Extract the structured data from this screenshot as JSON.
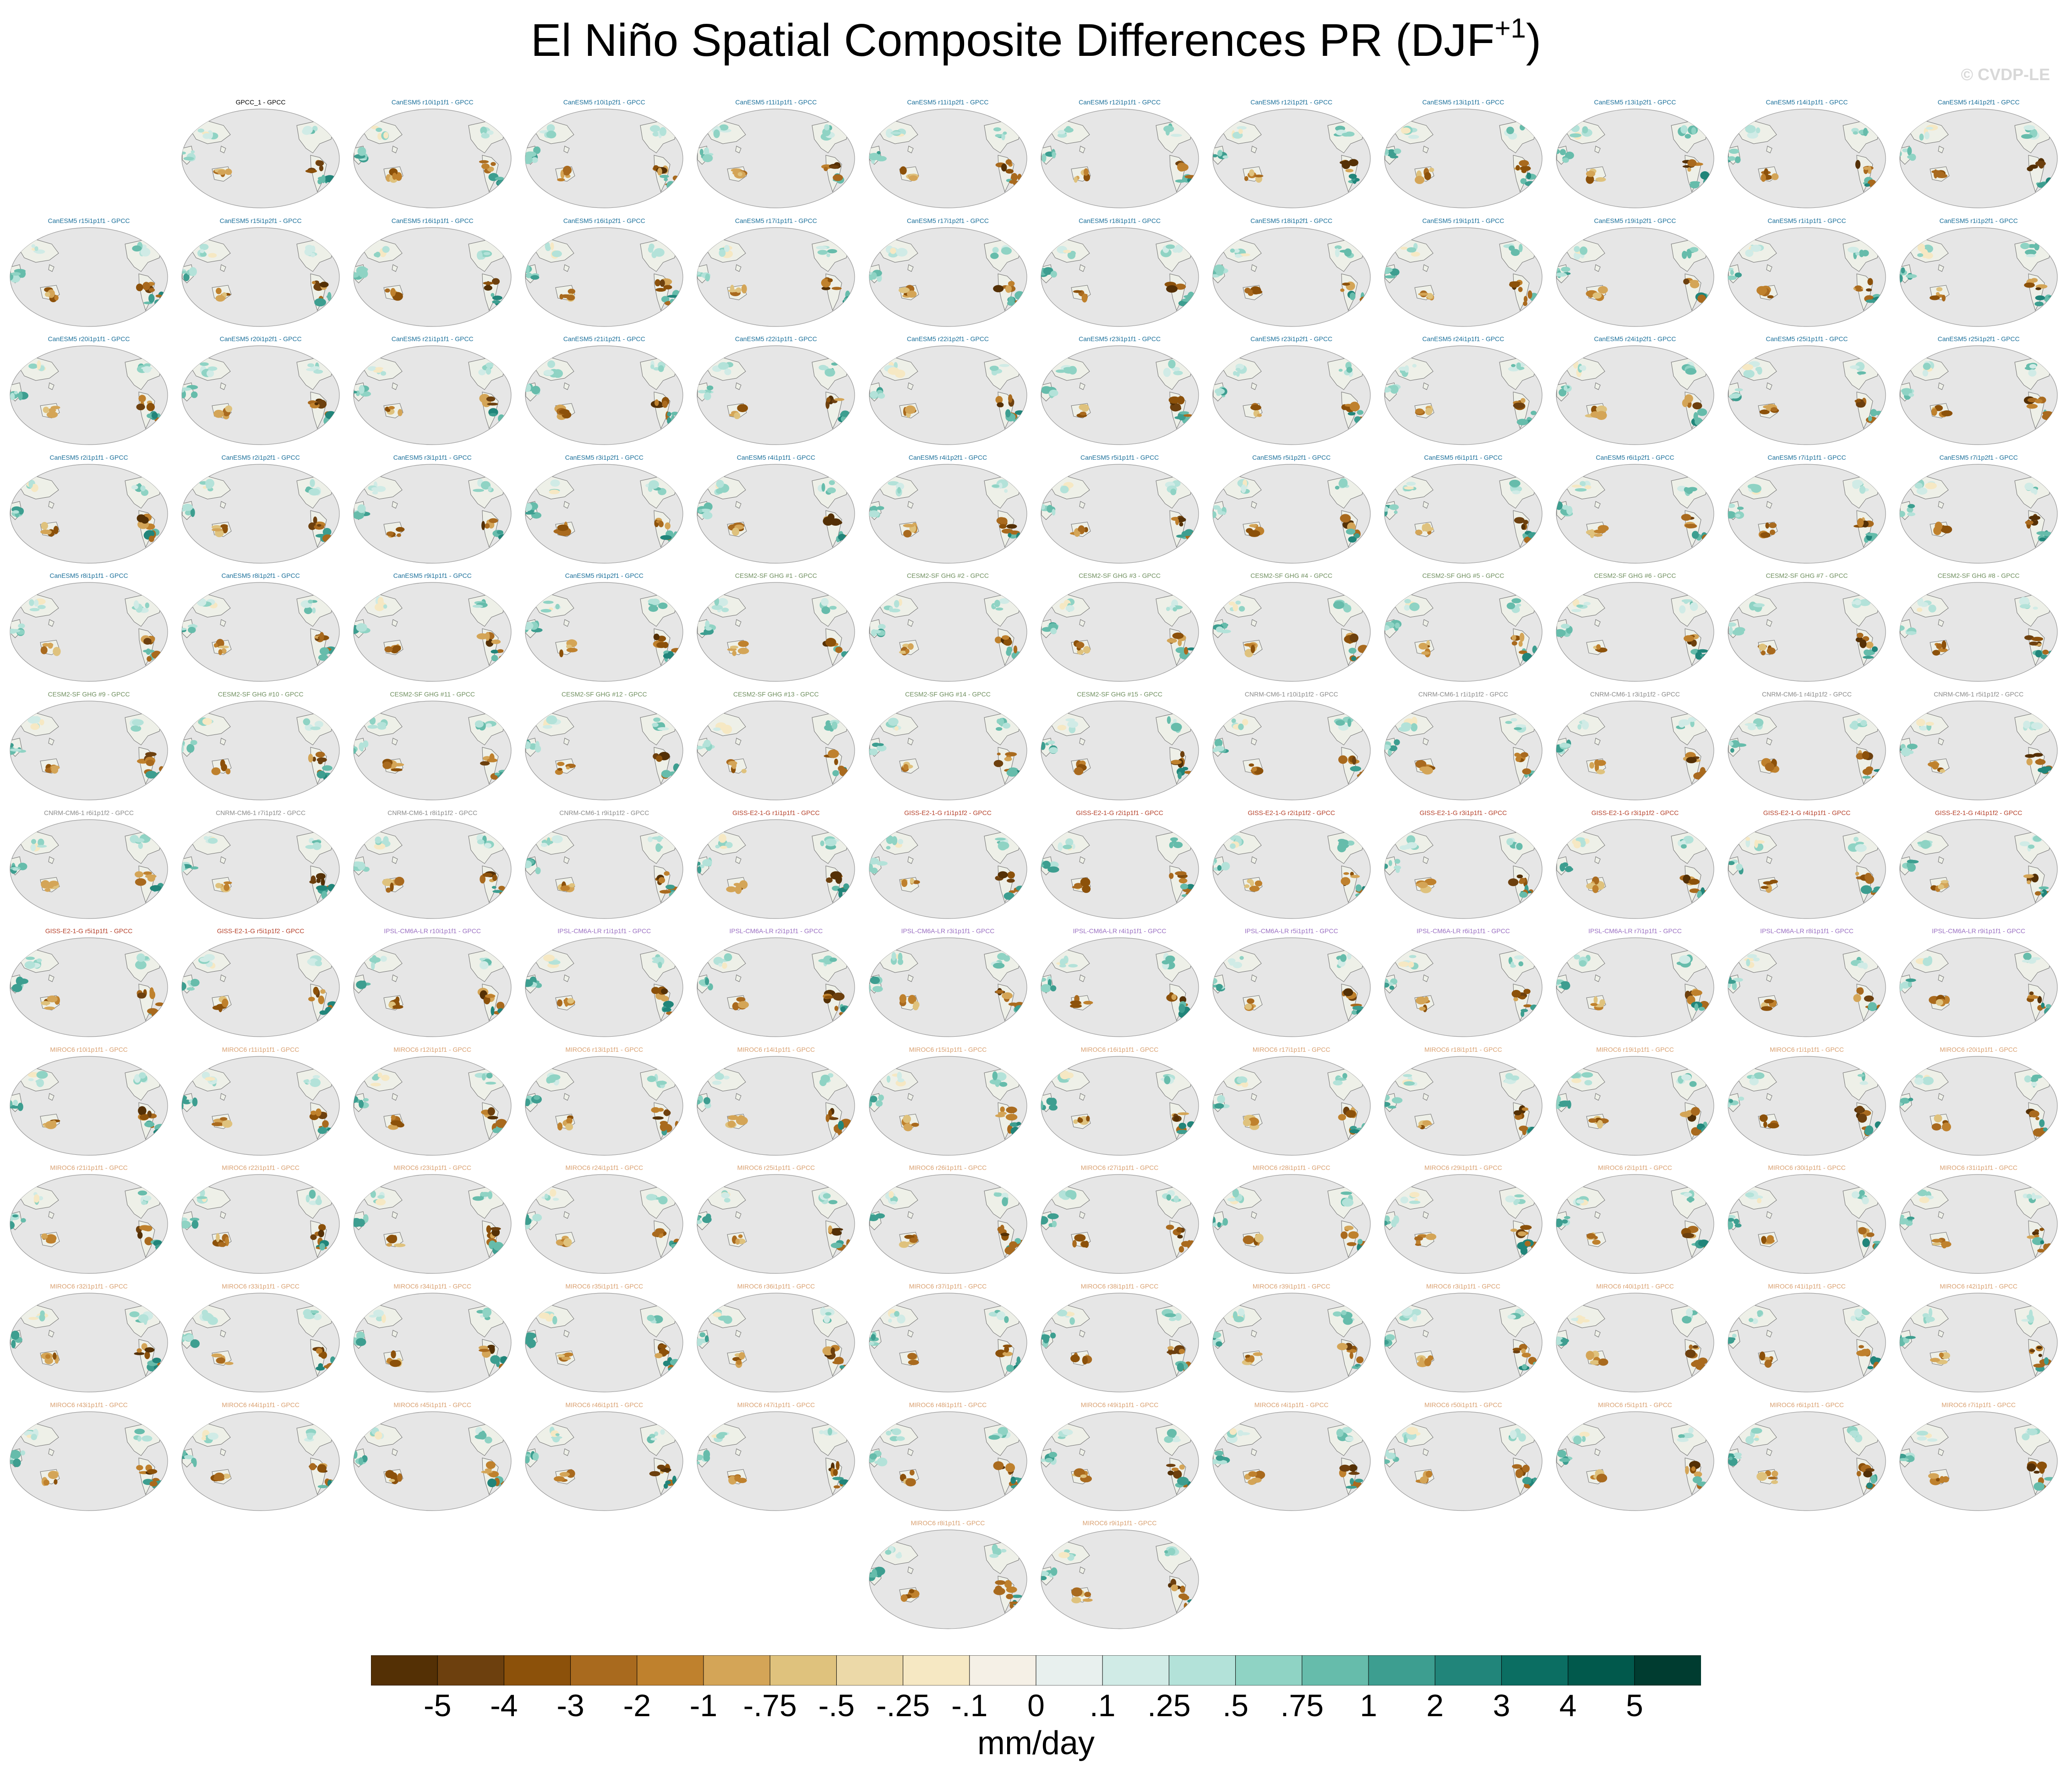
{
  "chart_data": {
    "type": "map-panels",
    "title_main": "El Niño Spatial Composite Differences PR (DJF",
    "title_sup": "+1",
    "title_close": ")",
    "credit": "© CVDP-LE",
    "units": "mm/day",
    "colorbar": {
      "colors": [
        "#543005",
        "#6d400e",
        "#8c510a",
        "#a96a1e",
        "#bf812d",
        "#d4a557",
        "#dfc27d",
        "#ecd9a8",
        "#f6e8c3",
        "#f5f0e6",
        "#e8f0ee",
        "#d0ebe6",
        "#b3e2d9",
        "#8fd3c4",
        "#66bcab",
        "#3d9e90",
        "#21857a",
        "#0b6e62",
        "#01594c",
        "#003c30"
      ],
      "labels": [
        "-5",
        "-4",
        "-3",
        "-2",
        "-1",
        "-.75",
        "-.5",
        "-.25",
        "-.1",
        "0",
        ".1",
        ".25",
        ".5",
        ".75",
        "1",
        "2",
        "3",
        "4",
        "5"
      ]
    },
    "groups": [
      {
        "model": "GPCC",
        "color": "#000000",
        "titles": [
          "GPCC_1 - GPCC"
        ]
      },
      {
        "model": "CanESM5",
        "color": "#1a6f9a",
        "titles": [
          "CanESM5 r10i1p1f1 - GPCC",
          "CanESM5 r10i1p2f1 - GPCC",
          "CanESM5 r11i1p1f1 - GPCC",
          "CanESM5 r11i1p2f1 - GPCC",
          "CanESM5 r12i1p1f1 - GPCC",
          "CanESM5 r12i1p2f1 - GPCC",
          "CanESM5 r13i1p1f1 - GPCC",
          "CanESM5 r13i1p2f1 - GPCC",
          "CanESM5 r14i1p1f1 - GPCC",
          "CanESM5 r14i1p2f1 - GPCC",
          "CanESM5 r15i1p1f1 - GPCC",
          "CanESM5 r15i1p2f1 - GPCC",
          "CanESM5 r16i1p1f1 - GPCC",
          "CanESM5 r16i1p2f1 - GPCC",
          "CanESM5 r17i1p1f1 - GPCC",
          "CanESM5 r17i1p2f1 - GPCC",
          "CanESM5 r18i1p1f1 - GPCC",
          "CanESM5 r18i1p2f1 - GPCC",
          "CanESM5 r19i1p1f1 - GPCC",
          "CanESM5 r19i1p2f1 - GPCC",
          "CanESM5 r1i1p1f1 - GPCC",
          "CanESM5 r1i1p2f1 - GPCC",
          "CanESM5 r20i1p1f1 - GPCC",
          "CanESM5 r20i1p2f1 - GPCC",
          "CanESM5 r21i1p1f1 - GPCC",
          "CanESM5 r21i1p2f1 - GPCC",
          "CanESM5 r22i1p1f1 - GPCC",
          "CanESM5 r22i1p2f1 - GPCC",
          "CanESM5 r23i1p1f1 - GPCC",
          "CanESM5 r23i1p2f1 - GPCC",
          "CanESM5 r24i1p1f1 - GPCC",
          "CanESM5 r24i1p2f1 - GPCC",
          "CanESM5 r25i1p1f1 - GPCC",
          "CanESM5 r25i1p2f1 - GPCC",
          "CanESM5 r2i1p1f1 - GPCC",
          "CanESM5 r2i1p2f1 - GPCC",
          "CanESM5 r3i1p1f1 - GPCC",
          "CanESM5 r3i1p2f1 - GPCC",
          "CanESM5 r4i1p1f1 - GPCC",
          "CanESM5 r4i1p2f1 - GPCC",
          "CanESM5 r5i1p1f1 - GPCC",
          "CanESM5 r5i1p2f1 - GPCC",
          "CanESM5 r6i1p1f1 - GPCC",
          "CanESM5 r6i1p2f1 - GPCC",
          "CanESM5 r7i1p1f1 - GPCC",
          "CanESM5 r7i1p2f1 - GPCC",
          "CanESM5 r8i1p1f1 - GPCC",
          "CanESM5 r8i1p2f1 - GPCC",
          "CanESM5 r9i1p1f1 - GPCC",
          "CanESM5 r9i1p2f1 - GPCC"
        ]
      },
      {
        "model": "CESM2-SF GHG",
        "color": "#6f8f5f",
        "titles": [
          "CESM2-SF GHG #1 - GPCC",
          "CESM2-SF GHG #2 - GPCC",
          "CESM2-SF GHG #3 - GPCC",
          "CESM2-SF GHG #4 - GPCC",
          "CESM2-SF GHG #5 - GPCC",
          "CESM2-SF GHG #6 - GPCC",
          "CESM2-SF GHG #7 - GPCC",
          "CESM2-SF GHG #8 - GPCC",
          "CESM2-SF GHG #9 - GPCC",
          "CESM2-SF GHG #10 - GPCC",
          "CESM2-SF GHG #11 - GPCC",
          "CESM2-SF GHG #12 - GPCC",
          "CESM2-SF GHG #13 - GPCC",
          "CESM2-SF GHG #14 - GPCC",
          "CESM2-SF GHG #15 - GPCC"
        ]
      },
      {
        "model": "CNRM-CM6-1",
        "color": "#8a8a8a",
        "titles": [
          "CNRM-CM6-1 r10i1p1f2 - GPCC",
          "CNRM-CM6-1 r1i1p1f2 - GPCC",
          "CNRM-CM6-1 r3i1p1f2 - GPCC",
          "CNRM-CM6-1 r4i1p1f2 - GPCC",
          "CNRM-CM6-1 r5i1p1f2 - GPCC",
          "CNRM-CM6-1 r6i1p1f2 - GPCC",
          "CNRM-CM6-1 r7i1p1f2 - GPCC",
          "CNRM-CM6-1 r8i1p1f2 - GPCC",
          "CNRM-CM6-1 r9i1p1f2 - GPCC"
        ]
      },
      {
        "model": "GISS-E2-1-G",
        "color": "#b5402a",
        "titles": [
          "GISS-E2-1-G r1i1p1f1 - GPCC",
          "GISS-E2-1-G r1i1p1f2 - GPCC",
          "GISS-E2-1-G r2i1p1f1 - GPCC",
          "GISS-E2-1-G r2i1p1f2 - GPCC",
          "GISS-E2-1-G r3i1p1f1 - GPCC",
          "GISS-E2-1-G r3i1p1f2 - GPCC",
          "GISS-E2-1-G r4i1p1f1 - GPCC",
          "GISS-E2-1-G r4i1p1f2 - GPCC",
          "GISS-E2-1-G r5i1p1f1 - GPCC",
          "GISS-E2-1-G r5i1p1f2 - GPCC"
        ]
      },
      {
        "model": "IPSL-CM6A-LR",
        "color": "#9a6fc2",
        "titles": [
          "IPSL-CM6A-LR r10i1p1f1 - GPCC",
          "IPSL-CM6A-LR r1i1p1f1 - GPCC",
          "IPSL-CM6A-LR r2i1p1f1 - GPCC",
          "IPSL-CM6A-LR r3i1p1f1 - GPCC",
          "IPSL-CM6A-LR r4i1p1f1 - GPCC",
          "IPSL-CM6A-LR r5i1p1f1 - GPCC",
          "IPSL-CM6A-LR r6i1p1f1 - GPCC",
          "IPSL-CM6A-LR r7i1p1f1 - GPCC",
          "IPSL-CM6A-LR r8i1p1f1 - GPCC",
          "IPSL-CM6A-LR r9i1p1f1 - GPCC"
        ]
      },
      {
        "model": "MIROC6",
        "color": "#d9a070",
        "titles": [
          "MIROC6 r10i1p1f1 - GPCC",
          "MIROC6 r11i1p1f1 - GPCC",
          "MIROC6 r12i1p1f1 - GPCC",
          "MIROC6 r13i1p1f1 - GPCC",
          "MIROC6 r14i1p1f1 - GPCC",
          "MIROC6 r15i1p1f1 - GPCC",
          "MIROC6 r16i1p1f1 - GPCC",
          "MIROC6 r17i1p1f1 - GPCC",
          "MIROC6 r18i1p1f1 - GPCC",
          "MIROC6 r19i1p1f1 - GPCC",
          "MIROC6 r1i1p1f1 - GPCC",
          "MIROC6 r20i1p1f1 - GPCC",
          "MIROC6 r21i1p1f1 - GPCC",
          "MIROC6 r22i1p1f1 - GPCC",
          "MIROC6 r23i1p1f1 - GPCC",
          "MIROC6 r24i1p1f1 - GPCC",
          "MIROC6 r25i1p1f1 - GPCC",
          "MIROC6 r26i1p1f1 - GPCC",
          "MIROC6 r27i1p1f1 - GPCC",
          "MIROC6 r28i1p1f1 - GPCC",
          "MIROC6 r29i1p1f1 - GPCC",
          "MIROC6 r2i1p1f1 - GPCC",
          "MIROC6 r30i1p1f1 - GPCC",
          "MIROC6 r31i1p1f1 - GPCC",
          "MIROC6 r32i1p1f1 - GPCC",
          "MIROC6 r33i1p1f1 - GPCC",
          "MIROC6 r34i1p1f1 - GPCC",
          "MIROC6 r35i1p1f1 - GPCC",
          "MIROC6 r36i1p1f1 - GPCC",
          "MIROC6 r37i1p1f1 - GPCC",
          "MIROC6 r38i1p1f1 - GPCC",
          "MIROC6 r39i1p1f1 - GPCC",
          "MIROC6 r3i1p1f1 - GPCC",
          "MIROC6 r40i1p1f1 - GPCC",
          "MIROC6 r41i1p1f1 - GPCC",
          "MIROC6 r42i1p1f1 - GPCC",
          "MIROC6 r43i1p1f1 - GPCC",
          "MIROC6 r44i1p1f1 - GPCC",
          "MIROC6 r45i1p1f1 - GPCC",
          "MIROC6 r46i1p1f1 - GPCC",
          "MIROC6 r47i1p1f1 - GPCC",
          "MIROC6 r48i1p1f1 - GPCC",
          "MIROC6 r49i1p1f1 - GPCC",
          "MIROC6 r4i1p1f1 - GPCC",
          "MIROC6 r50i1p1f1 - GPCC",
          "MIROC6 r5i1p1f1 - GPCC",
          "MIROC6 r6i1p1f1 - GPCC",
          "MIROC6 r7i1p1f1 - GPCC",
          "MIROC6 r8i1p1f1 - GPCC",
          "MIROC6 r9i1p1f1 - GPCC"
        ]
      }
    ]
  }
}
